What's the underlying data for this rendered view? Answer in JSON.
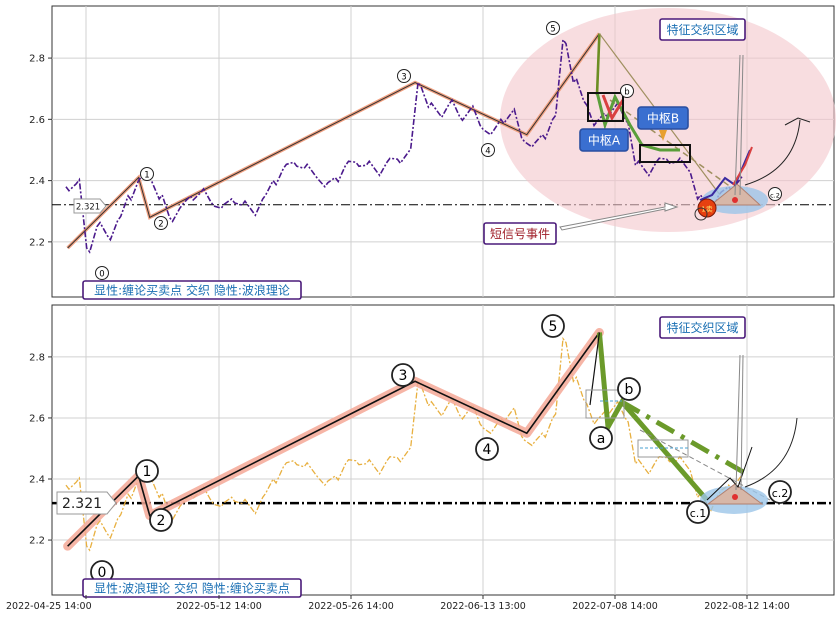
{
  "chart_data": [
    {
      "type": "line",
      "title": "",
      "xlabel": "",
      "ylabel": "",
      "ylim": [
        2.02,
        2.97
      ],
      "y_ticks": [
        2.2,
        2.4,
        2.6,
        2.8
      ],
      "grid": true,
      "ref_line": {
        "value": 2.321,
        "label": "2.321"
      },
      "series": [
        {
          "values_close": [
            2.38,
            2.39,
            2.18,
            2.25,
            2.22,
            2.27,
            2.35,
            2.4,
            2.41,
            2.34,
            2.28,
            2.31,
            2.35,
            2.36,
            2.33,
            2.31,
            2.34,
            2.32,
            2.3,
            2.34,
            2.4,
            2.44,
            2.46,
            2.44,
            2.42,
            2.38,
            2.41,
            2.45,
            2.46,
            2.45,
            2.43,
            2.46,
            2.47,
            2.49,
            2.72,
            2.64,
            2.62,
            2.65,
            2.61,
            2.63,
            2.58,
            2.55,
            2.6,
            2.62,
            2.54,
            2.51,
            2.55,
            2.6,
            2.86,
            2.72,
            2.66,
            2.58,
            2.62,
            2.64,
            2.6,
            2.45,
            2.43,
            2.46,
            2.47,
            2.46,
            2.44,
            2.34,
            2.31,
            2.35,
            2.38,
            2.4
          ]
        }
      ],
      "wave_labels": [
        "0",
        "1",
        "2",
        "3",
        "4",
        "5",
        "b",
        "c.2"
      ],
      "wave_points": [
        {
          "label": "0",
          "x": 0.28,
          "y": 2.18
        },
        {
          "label": "1",
          "x": 1.55,
          "y": 2.41
        },
        {
          "label": "2",
          "x": 1.75,
          "y": 2.28
        },
        {
          "label": "3",
          "x": 6.5,
          "y": 2.72
        },
        {
          "label": "4",
          "x": 8.5,
          "y": 2.55
        },
        {
          "label": "5",
          "x": 9.8,
          "y": 2.88
        },
        {
          "label": "b",
          "x": 10.85,
          "y": 2.65
        },
        {
          "label": "c.2",
          "x": 12.55,
          "y": 2.32
        }
      ],
      "annotations": {
        "feature_zone": "特征交织区域",
        "pivot_a": "中枢A",
        "pivot_b": "中枢B",
        "short_signal": "短信号事件",
        "signal_marker": "1卖",
        "panel_caption": "显性:缠论买卖点 交织 隐性:波浪理论"
      }
    },
    {
      "type": "line",
      "title": "",
      "xlabel": "",
      "ylabel": "",
      "ylim": [
        2.02,
        2.97
      ],
      "y_ticks": [
        2.2,
        2.4,
        2.6,
        2.8
      ],
      "grid": true,
      "ref_line": {
        "value": 2.321,
        "label": "2.321"
      },
      "x_tick_labels": [
        "2022-04-25 14:00",
        "2022-05-12 14:00",
        "2022-05-26 14:00",
        "2022-06-13 13:00",
        "2022-07-08 14:00",
        "2022-08-12 14:00"
      ],
      "wave_points": [
        {
          "label": "0",
          "x": 0.28,
          "y": 2.18
        },
        {
          "label": "1",
          "x": 1.55,
          "y": 2.41
        },
        {
          "label": "2",
          "x": 1.75,
          "y": 2.28
        },
        {
          "label": "3",
          "x": 6.5,
          "y": 2.72
        },
        {
          "label": "4",
          "x": 8.5,
          "y": 2.55
        },
        {
          "label": "5",
          "x": 9.8,
          "y": 2.88
        },
        {
          "label": "a",
          "x": 10.5,
          "y": 2.58
        },
        {
          "label": "b",
          "x": 10.85,
          "y": 2.65
        },
        {
          "label": "c.1",
          "x": 12.0,
          "y": 2.32
        },
        {
          "label": "c.2",
          "x": 12.7,
          "y": 2.33
        }
      ],
      "annotations": {
        "feature_zone": "特征交织区域",
        "panel_caption": "显性:波浪理论 交织 隐性:缠论买卖点"
      }
    }
  ]
}
